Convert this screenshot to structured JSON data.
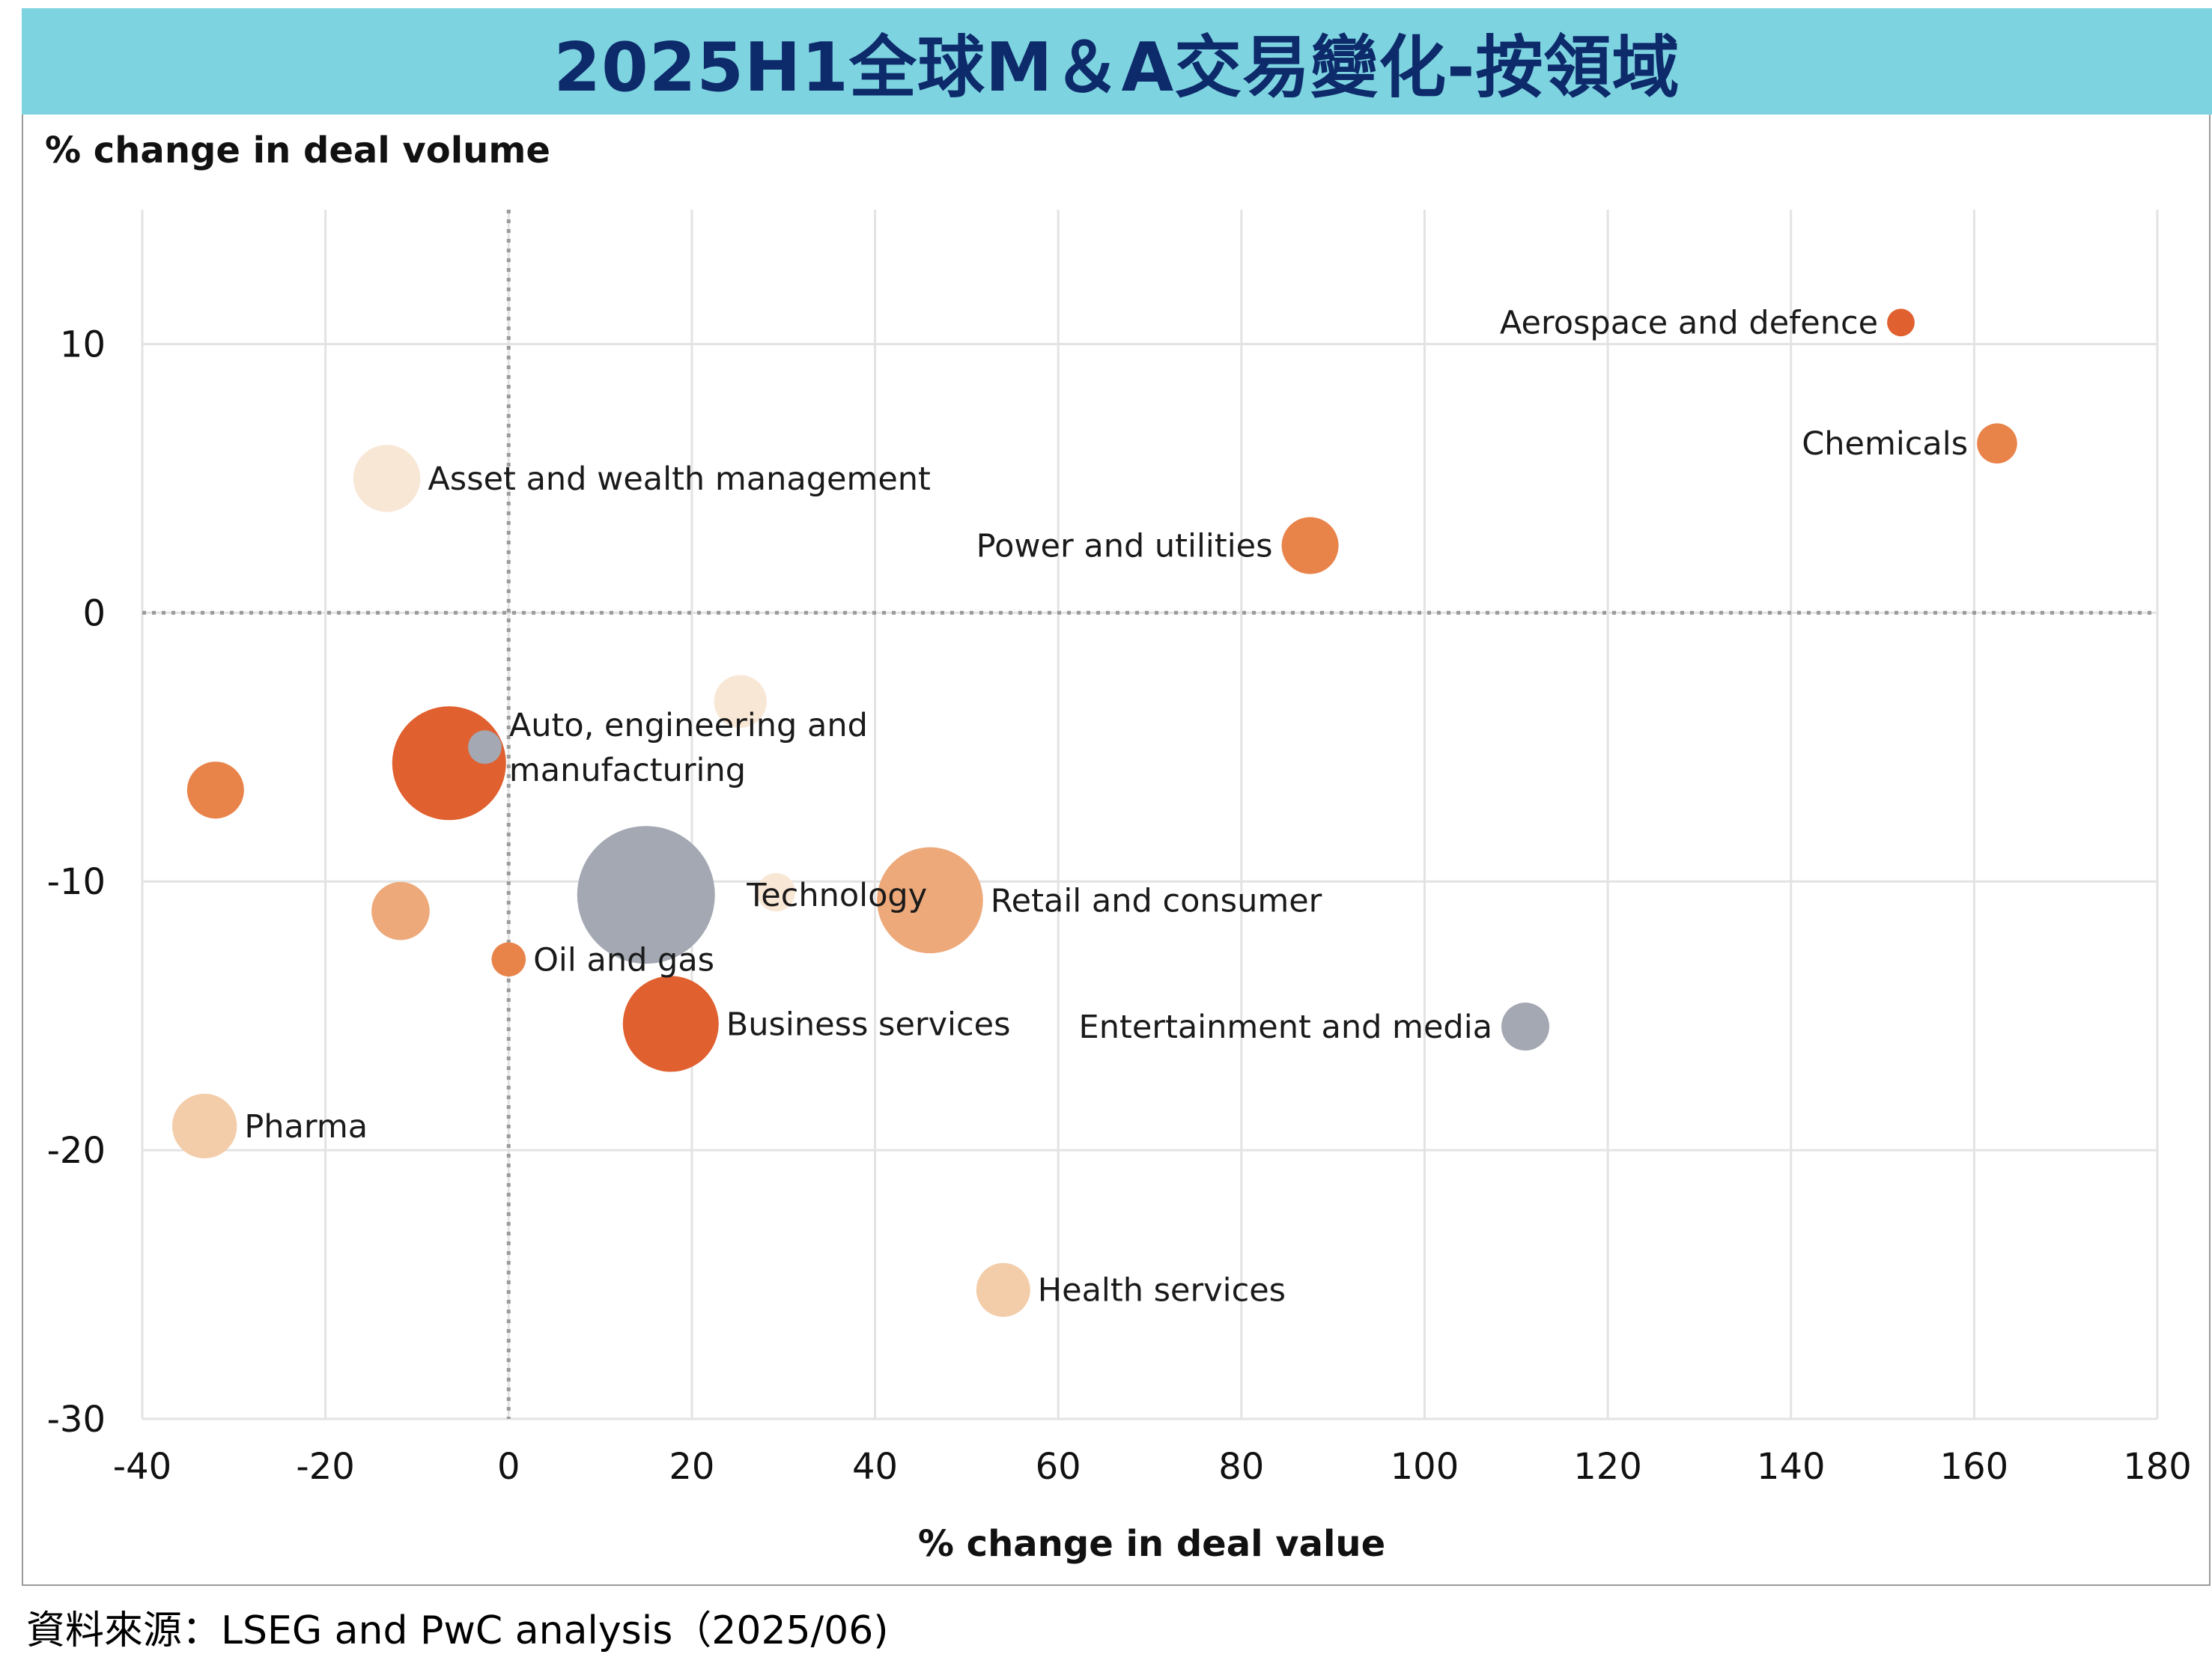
{
  "page": {
    "title": "2025H1全球M＆A交易變化-按領域",
    "source": "資料來源：LSEG and PwC analysis（2025/06)"
  },
  "colors": {
    "title_bg": "#7dd3e0",
    "title_text": "#0d2a6b",
    "red_orange": "#e0602f",
    "orange": "#e8834a",
    "light_orange": "#eda97a",
    "peach": "#f3cda9",
    "cream": "#f9e7d6",
    "gray": "#a3a8b2"
  },
  "chart_data": {
    "type": "scatter",
    "variant": "bubble",
    "xlabel": "% change in deal value",
    "ylabel": "% change in deal volume",
    "xlim": [
      -40,
      180
    ],
    "ylim": [
      -30,
      15
    ],
    "xticks": [
      -40,
      -20,
      0,
      20,
      40,
      60,
      80,
      100,
      120,
      140,
      160,
      180
    ],
    "yticks": [
      10,
      0,
      -10,
      -20,
      -30
    ],
    "grid": true,
    "reference_lines": {
      "x": 0,
      "y": 0,
      "style": "dotted"
    },
    "points": [
      {
        "label": "Aerospace and defence",
        "x": 152,
        "y": 10.8,
        "size": 0.46,
        "color": "red_orange",
        "label_side": "left"
      },
      {
        "label": "Chemicals",
        "x": 162.5,
        "y": 6.3,
        "size": 0.67,
        "color": "orange",
        "label_side": "left"
      },
      {
        "label": "Asset and wealth management",
        "x": -13.3,
        "y": 5.0,
        "size": 1.12,
        "color": "cream",
        "label_side": "right"
      },
      {
        "label": "Power and utilities",
        "x": 87.5,
        "y": 2.5,
        "size": 0.95,
        "color": "orange",
        "label_side": "left"
      },
      {
        "label": "",
        "x": 25.3,
        "y": -3.3,
        "size": 0.88,
        "color": "cream"
      },
      {
        "label": "",
        "x": -6.5,
        "y": -5.6,
        "size": 1.9,
        "color": "red_orange"
      },
      {
        "label": "Auto, engineering and\nmanufacturing",
        "x": -2.6,
        "y": -5.0,
        "size": 0.56,
        "color": "gray",
        "label_side": "right"
      },
      {
        "label": "",
        "x": -32,
        "y": -6.6,
        "size": 0.95,
        "color": "orange"
      },
      {
        "label": "",
        "x": -11.8,
        "y": -11.1,
        "size": 0.97,
        "color": "light_orange"
      },
      {
        "label": "Technology",
        "x": 15,
        "y": -10.5,
        "size": 2.3,
        "color": "gray",
        "label_side": "right",
        "label_x": 26
      },
      {
        "label": "",
        "x": 29.2,
        "y": -10.4,
        "size": 0.64,
        "color": "cream"
      },
      {
        "label": "Retail and consumer",
        "x": 46,
        "y": -10.7,
        "size": 1.77,
        "color": "light_orange",
        "label_side": "right"
      },
      {
        "label": "Oil and gas",
        "x": 0,
        "y": -12.9,
        "size": 0.57,
        "color": "orange",
        "label_side": "right"
      },
      {
        "label": "Business services",
        "x": 17.7,
        "y": -15.3,
        "size": 1.6,
        "color": "red_orange",
        "label_side": "right"
      },
      {
        "label": "Entertainment and media",
        "x": 111,
        "y": -15.4,
        "size": 0.8,
        "color": "gray",
        "label_side": "left"
      },
      {
        "label": "Pharma",
        "x": -33.2,
        "y": -19.1,
        "size": 1.08,
        "color": "peach",
        "label_side": "right"
      },
      {
        "label": "Health services",
        "x": 54,
        "y": -25.2,
        "size": 0.9,
        "color": "peach",
        "label_side": "right"
      }
    ]
  }
}
